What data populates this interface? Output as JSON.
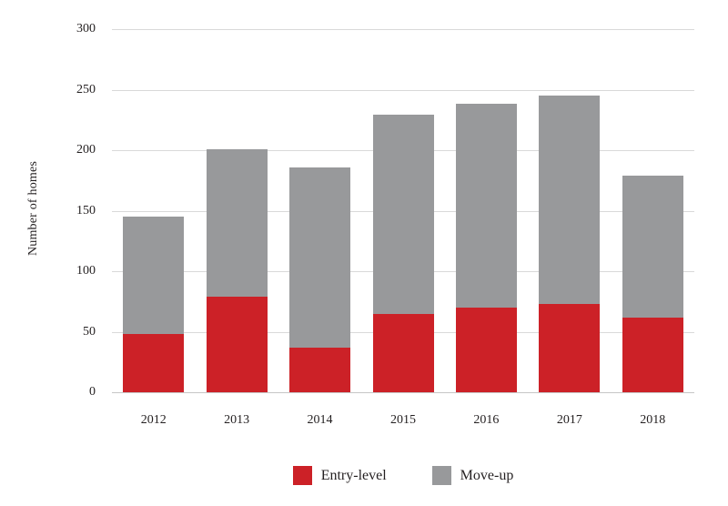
{
  "chart_data": {
    "type": "bar",
    "stacked": true,
    "title": "",
    "categories": [
      "2012",
      "2013",
      "2014",
      "2015",
      "2016",
      "2017",
      "2018"
    ],
    "series": [
      {
        "name": "Entry-level",
        "color": "#cc2127",
        "values": [
          48,
          79,
          37,
          65,
          70,
          73,
          62
        ]
      },
      {
        "name": "Move-up",
        "color": "#98999b",
        "values": [
          97,
          122,
          149,
          164,
          168,
          172,
          117
        ]
      }
    ],
    "totals": [
      145,
      201,
      186,
      229,
      238,
      245,
      179
    ],
    "xlabel": "",
    "ylabel": "Number of homes",
    "ylim": [
      0,
      300
    ],
    "ytick_step": 50,
    "yticks": [
      "0",
      "50",
      "100",
      "150",
      "200",
      "250",
      "300"
    ],
    "grid": true,
    "legend_position": "bottom"
  },
  "colors": {
    "background": "#ffffff",
    "text": "#231f20",
    "gridline": "#d9d9d9",
    "axis_line": "#c6c6c6",
    "entry_level": "#cc2127",
    "move_up": "#98999b"
  }
}
